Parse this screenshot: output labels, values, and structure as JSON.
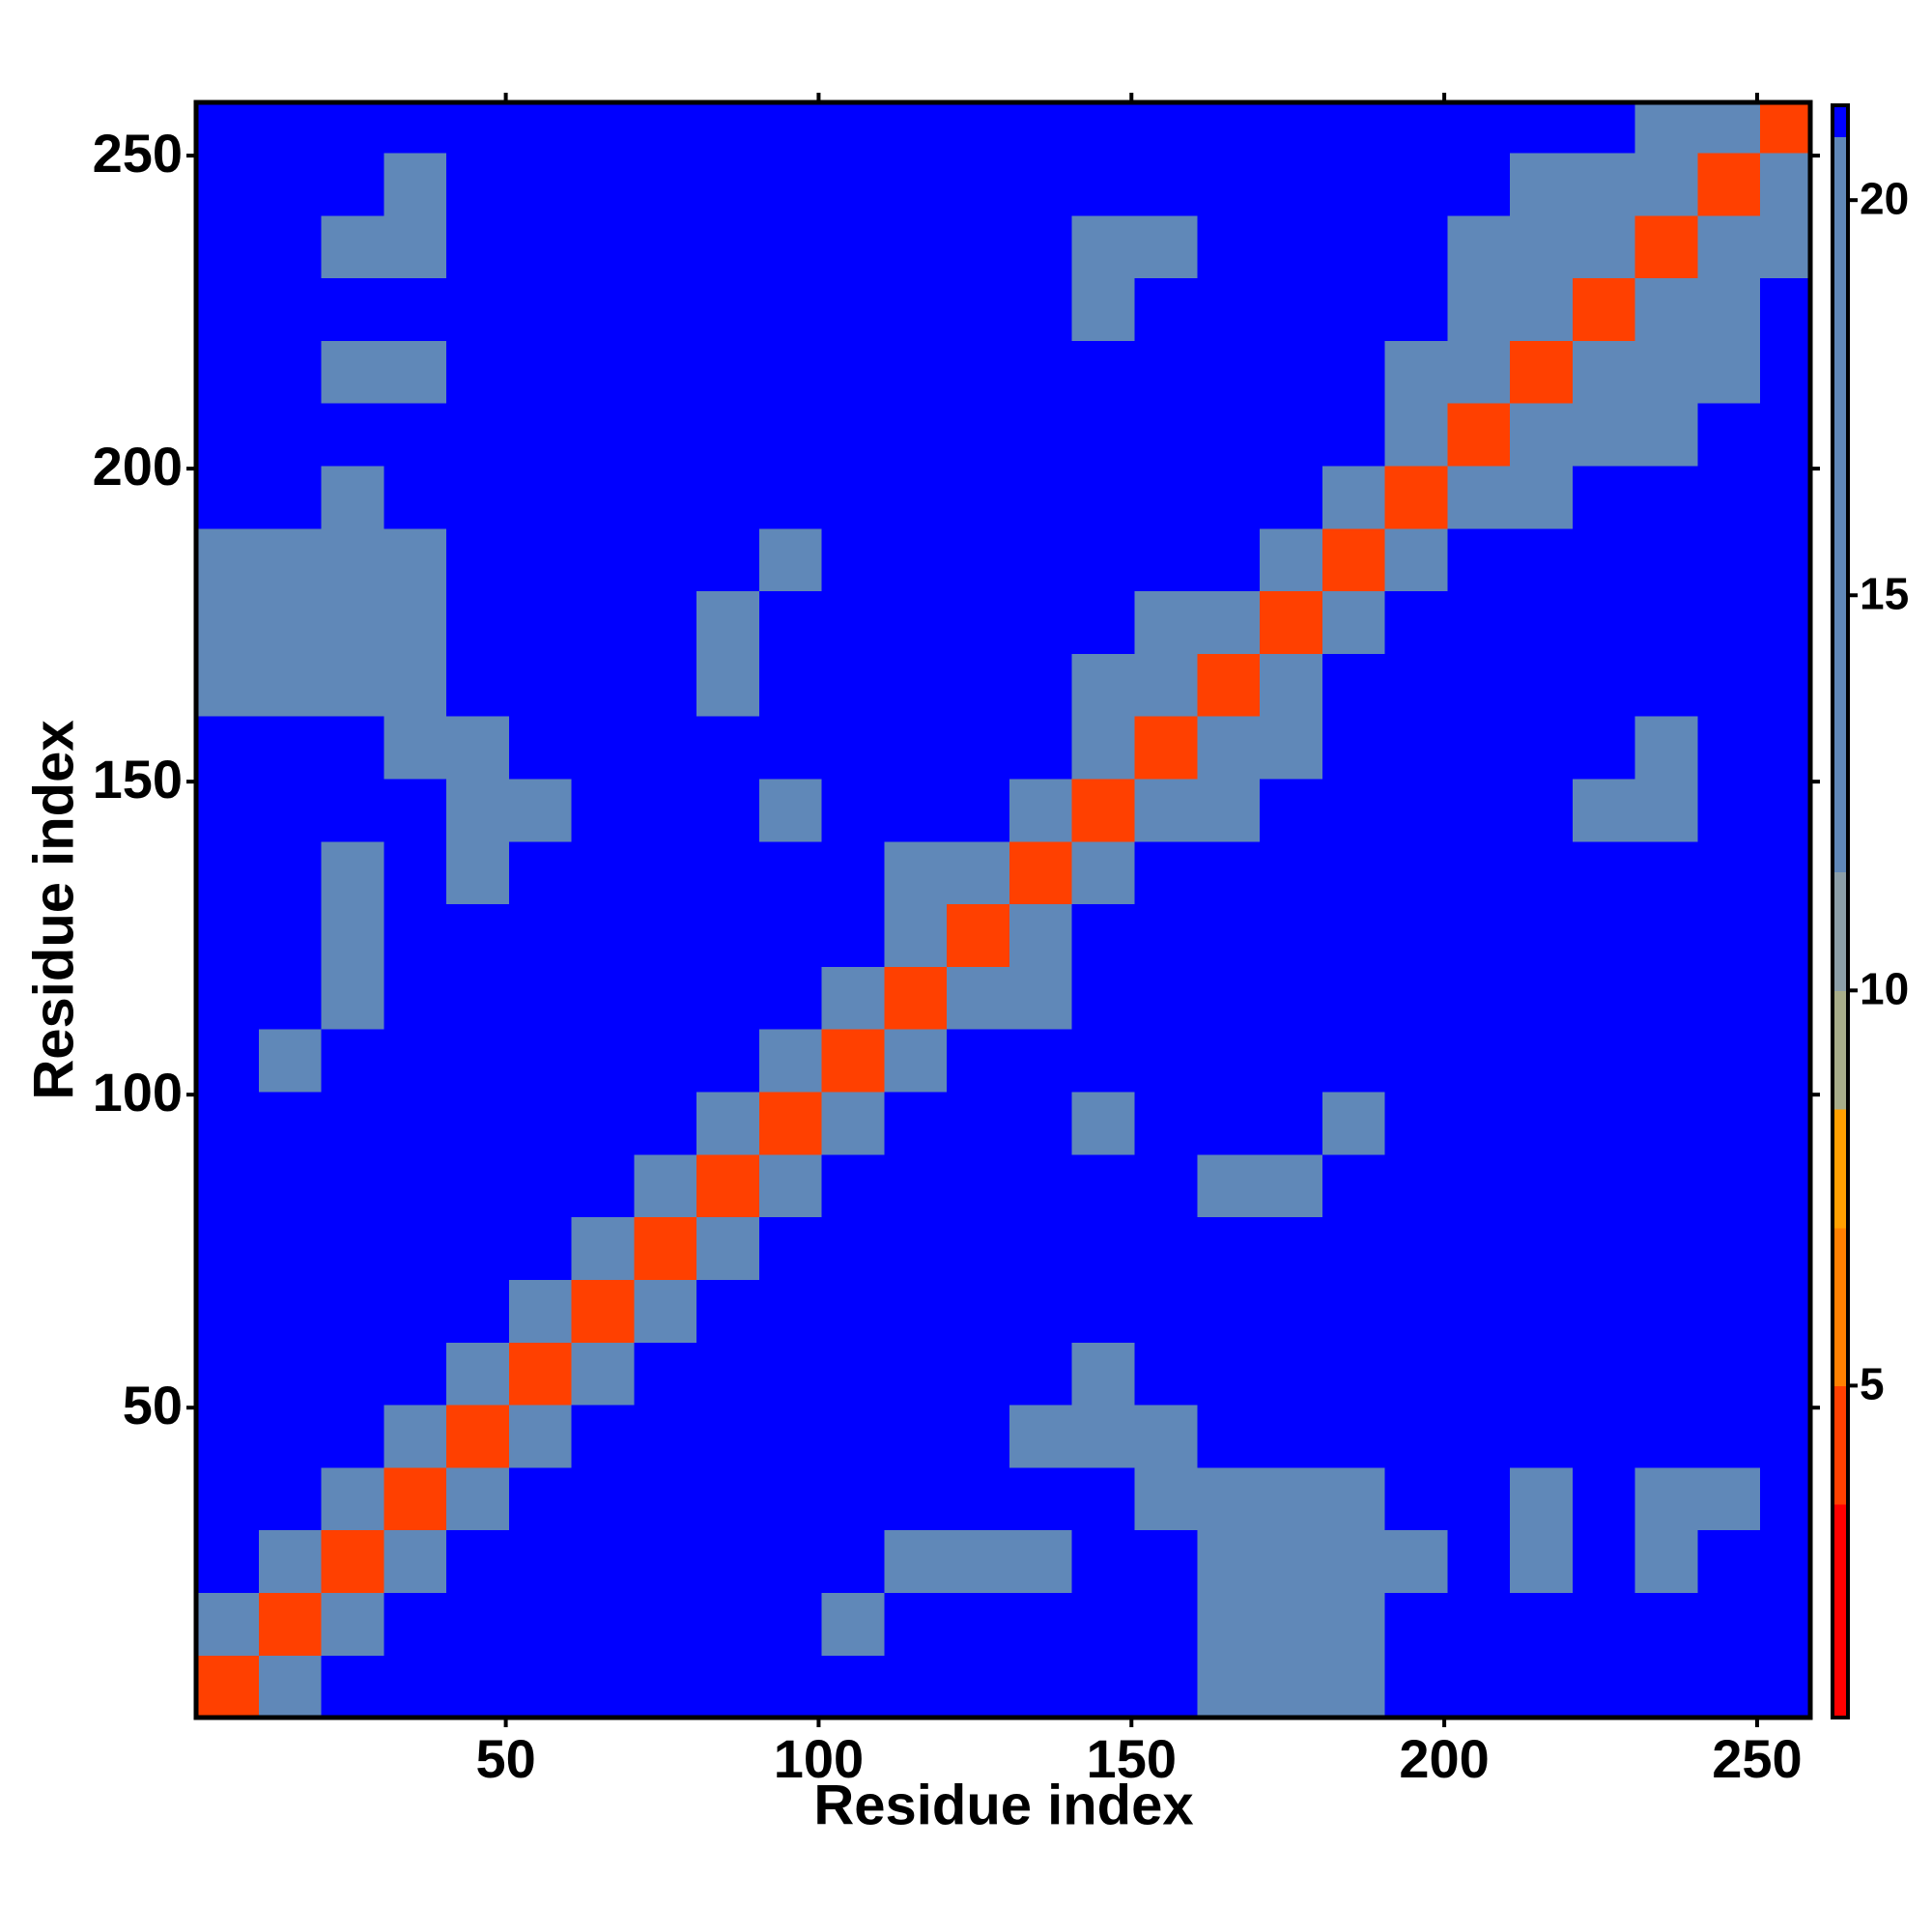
{
  "chart_data": {
    "type": "heatmap",
    "x_label": "Residue index",
    "y_label": "Residue index",
    "bins": [
      0.5,
      10.5,
      20.5,
      30.5,
      40.5,
      50.5,
      60.5,
      70.5,
      80.5,
      90.5,
      100.5,
      110.5,
      120.5,
      130.5,
      140.5,
      150.5,
      160.5,
      170.5,
      180.5,
      190.5,
      200.5,
      210.5,
      220.5,
      230.5,
      240.5,
      250.5,
      258.5
    ],
    "xlim": [
      0.5,
      258.5
    ],
    "ylim": [
      0.5,
      258.5
    ],
    "xticks": [
      50,
      100,
      150,
      200,
      250
    ],
    "yticks": [
      50,
      100,
      150,
      200,
      250
    ],
    "zlim": [
      0.8,
      21.2
    ],
    "zticks": [
      5,
      10,
      15,
      20
    ],
    "colorscale": [
      [
        3.5,
        "#ff0000"
      ],
      [
        5,
        "#ff4000"
      ],
      [
        7,
        "#ff8000"
      ],
      [
        8.5,
        "#ffa000"
      ],
      [
        10,
        "#a8ad8a"
      ],
      [
        11.5,
        "#8c9fa8"
      ],
      [
        20.8,
        "#6088b8"
      ],
      [
        21.2,
        "#0000ff"
      ]
    ],
    "z": [
      [
        5,
        16,
        21,
        21,
        21,
        21,
        21,
        21,
        21,
        21,
        21,
        21,
        21,
        21,
        21,
        21,
        20,
        18,
        20,
        21,
        21,
        21,
        21,
        21,
        21,
        21
      ],
      [
        16,
        5,
        16,
        21,
        21,
        21,
        21,
        21,
        21,
        21,
        20,
        21,
        21,
        21,
        21,
        21,
        20,
        18,
        18,
        21,
        21,
        21,
        21,
        21,
        21,
        21
      ],
      [
        21,
        16,
        5,
        16,
        21,
        21,
        21,
        21,
        21,
        21,
        21,
        20,
        20,
        20,
        21,
        21,
        18,
        17,
        18,
        20,
        21,
        20,
        21,
        20,
        21,
        21
      ],
      [
        21,
        21,
        16,
        5,
        16,
        21,
        21,
        21,
        21,
        21,
        21,
        21,
        21,
        21,
        21,
        18,
        18,
        14,
        20,
        21,
        21,
        20,
        21,
        18,
        20,
        21
      ],
      [
        21,
        21,
        21,
        16,
        5,
        16,
        21,
        21,
        21,
        21,
        21,
        21,
        21,
        18,
        18,
        18,
        21,
        21,
        21,
        21,
        21,
        21,
        21,
        21,
        21,
        21
      ],
      [
        21,
        21,
        21,
        21,
        16,
        5,
        16,
        21,
        21,
        21,
        21,
        21,
        21,
        21,
        20,
        21,
        21,
        21,
        21,
        21,
        21,
        21,
        21,
        21,
        21,
        21
      ],
      [
        21,
        21,
        21,
        21,
        21,
        16,
        5,
        16,
        21,
        21,
        21,
        21,
        21,
        21,
        21,
        21,
        21,
        21,
        21,
        21,
        21,
        21,
        21,
        21,
        21,
        21
      ],
      [
        21,
        21,
        21,
        21,
        21,
        21,
        16,
        5,
        16,
        21,
        21,
        21,
        21,
        21,
        21,
        21,
        21,
        21,
        21,
        21,
        21,
        21,
        21,
        21,
        21,
        21
      ],
      [
        21,
        21,
        21,
        21,
        21,
        21,
        21,
        16,
        5,
        16,
        21,
        21,
        21,
        21,
        21,
        21,
        20,
        20,
        21,
        21,
        21,
        21,
        21,
        21,
        21,
        21
      ],
      [
        21,
        21,
        21,
        21,
        21,
        21,
        21,
        21,
        16,
        5,
        16,
        21,
        21,
        21,
        20,
        21,
        21,
        21,
        20,
        21,
        21,
        21,
        21,
        21,
        21,
        21
      ],
      [
        21,
        20,
        21,
        21,
        21,
        21,
        21,
        21,
        21,
        16,
        5,
        16,
        21,
        21,
        21,
        21,
        21,
        21,
        21,
        21,
        21,
        21,
        21,
        21,
        21,
        21
      ],
      [
        21,
        21,
        20,
        21,
        21,
        21,
        21,
        21,
        21,
        21,
        16,
        5,
        16,
        18,
        21,
        21,
        21,
        21,
        21,
        21,
        21,
        21,
        21,
        21,
        21,
        21
      ],
      [
        21,
        21,
        20,
        21,
        21,
        21,
        21,
        21,
        21,
        21,
        21,
        16,
        5,
        16,
        21,
        21,
        21,
        21,
        21,
        21,
        21,
        21,
        21,
        21,
        21,
        21
      ],
      [
        21,
        21,
        20,
        21,
        18,
        21,
        21,
        21,
        21,
        21,
        21,
        18,
        16,
        5,
        16,
        21,
        21,
        21,
        21,
        21,
        21,
        21,
        21,
        21,
        21,
        21
      ],
      [
        21,
        21,
        21,
        21,
        18,
        20,
        21,
        21,
        21,
        20,
        21,
        21,
        21,
        16,
        5,
        16,
        18,
        21,
        21,
        21,
        21,
        21,
        20,
        20,
        21,
        21
      ],
      [
        21,
        21,
        21,
        18,
        18,
        21,
        21,
        21,
        21,
        21,
        21,
        21,
        21,
        21,
        16,
        5,
        16,
        18,
        21,
        21,
        21,
        21,
        21,
        20,
        21,
        21
      ],
      [
        20,
        20,
        18,
        18,
        21,
        21,
        21,
        21,
        20,
        21,
        21,
        21,
        21,
        21,
        18,
        16,
        5,
        16,
        21,
        21,
        21,
        21,
        21,
        21,
        21,
        21
      ],
      [
        18,
        18,
        17,
        14,
        21,
        21,
        21,
        21,
        20,
        21,
        21,
        21,
        21,
        21,
        21,
        18,
        16,
        5,
        16,
        21,
        21,
        21,
        21,
        21,
        21,
        21
      ],
      [
        20,
        18,
        18,
        20,
        21,
        21,
        21,
        21,
        21,
        20,
        21,
        21,
        21,
        21,
        21,
        21,
        21,
        16,
        5,
        16,
        21,
        21,
        21,
        21,
        21,
        21
      ],
      [
        21,
        21,
        20,
        21,
        21,
        21,
        21,
        21,
        21,
        21,
        21,
        21,
        21,
        21,
        21,
        21,
        21,
        21,
        16,
        5,
        16,
        18,
        21,
        21,
        21,
        21
      ],
      [
        21,
        21,
        21,
        21,
        21,
        21,
        21,
        21,
        21,
        21,
        21,
        21,
        21,
        21,
        21,
        21,
        21,
        21,
        21,
        16,
        5,
        16,
        18,
        20,
        21,
        21
      ],
      [
        21,
        21,
        20,
        20,
        21,
        21,
        21,
        21,
        21,
        21,
        21,
        21,
        21,
        21,
        21,
        21,
        21,
        21,
        21,
        18,
        16,
        5,
        16,
        18,
        18,
        21
      ],
      [
        21,
        21,
        21,
        21,
        21,
        21,
        21,
        21,
        21,
        21,
        21,
        21,
        21,
        21,
        20,
        21,
        21,
        21,
        21,
        21,
        18,
        16,
        5,
        16,
        18,
        21
      ],
      [
        21,
        21,
        20,
        18,
        21,
        21,
        21,
        21,
        21,
        21,
        21,
        21,
        21,
        21,
        20,
        20,
        21,
        21,
        21,
        21,
        20,
        18,
        16,
        5,
        16,
        18
      ],
      [
        21,
        21,
        21,
        20,
        21,
        21,
        21,
        21,
        21,
        21,
        21,
        21,
        21,
        21,
        21,
        21,
        21,
        21,
        21,
        21,
        21,
        18,
        18,
        16,
        5,
        16
      ],
      [
        21,
        21,
        21,
        21,
        21,
        21,
        21,
        21,
        21,
        21,
        21,
        21,
        21,
        21,
        21,
        21,
        21,
        21,
        21,
        21,
        21,
        21,
        21,
        18,
        16,
        5
      ]
    ]
  }
}
